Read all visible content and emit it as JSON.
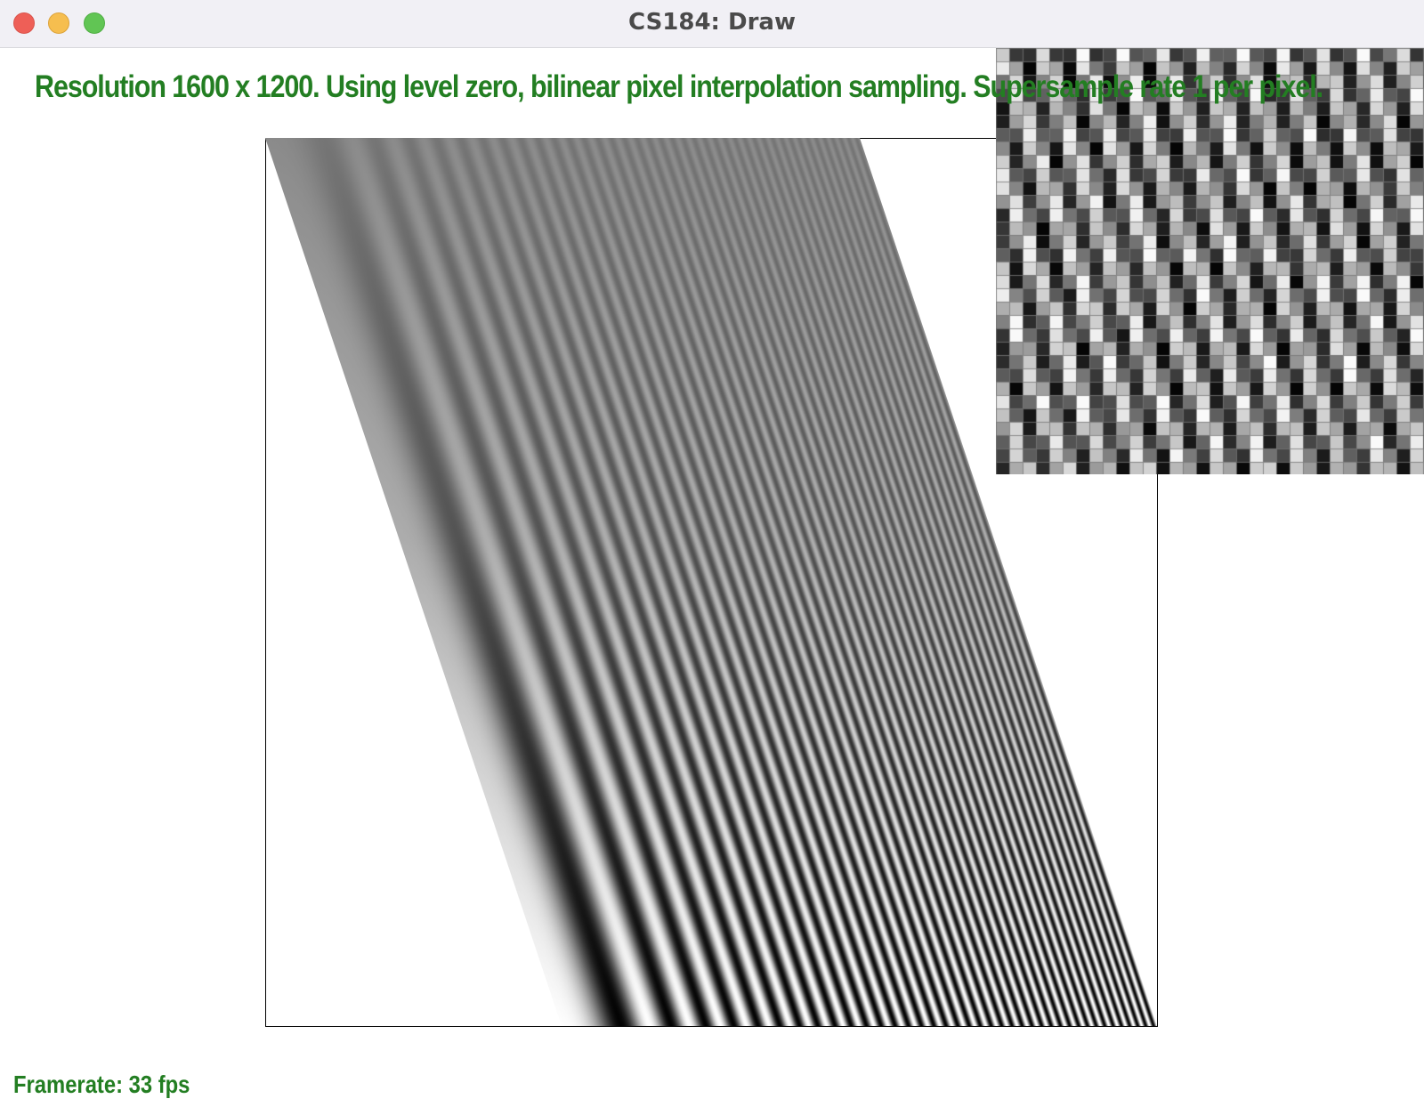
{
  "window": {
    "title": "CS184: Draw"
  },
  "overlay": {
    "status": "Resolution 1600 x 1200. Using level zero, bilinear pixel interpolation sampling. Supersample rate 1 per pixel.",
    "framerate": "Framerate: 33 fps",
    "text_color": "#237e22"
  },
  "colors": {
    "close": "#ee5f57",
    "minimize": "#f6be4f",
    "maximize": "#61c554"
  }
}
